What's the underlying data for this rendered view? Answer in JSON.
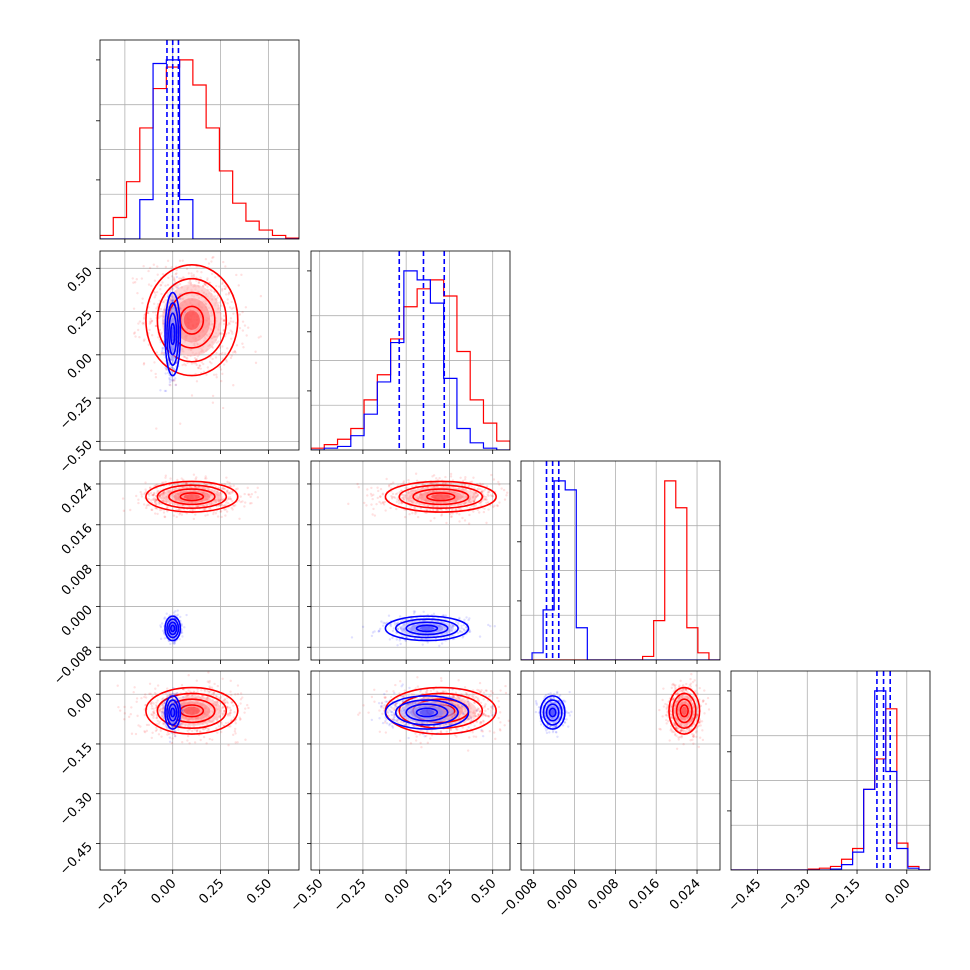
{
  "chart_data": {
    "type": "corner",
    "title": "",
    "parameters": 4,
    "grid": true,
    "colors": {
      "red": "#ff0000",
      "blue": "#0000ff"
    },
    "axes": [
      {
        "range": [
          -0.38,
          0.66
        ],
        "ticks": [
          -0.25,
          0.0,
          0.25,
          0.5
        ],
        "tick_labels": [
          "−0.25",
          "0.00",
          "0.25",
          "0.50"
        ]
      },
      {
        "range": [
          -0.55,
          0.6
        ],
        "ticks": [
          -0.5,
          -0.25,
          0.0,
          0.25,
          0.5
        ],
        "tick_labels": [
          "−0.50",
          "−0.25",
          "0.00",
          "0.25",
          "0.50"
        ]
      },
      {
        "range": [
          -0.0105,
          0.0285
        ],
        "ticks": [
          -0.008,
          0.0,
          0.008,
          0.016,
          0.024
        ],
        "tick_labels": [
          "−0.008",
          "0.000",
          "0.008",
          "0.016",
          "0.024"
        ]
      },
      {
        "range": [
          -0.53,
          0.07
        ],
        "ticks": [
          -0.45,
          -0.3,
          -0.15,
          0.0
        ],
        "tick_labels": [
          "−0.45",
          "−0.30",
          "−0.15",
          "0.00"
        ]
      }
    ],
    "series": [
      {
        "color": "#ff0000",
        "mean": [
          0.1,
          0.2,
          0.0215,
          -0.05
        ],
        "sd": [
          0.12,
          0.16,
          0.0015,
          0.035
        ],
        "quantiles": [],
        "hist": [
          {
            "edges_range": [
              -0.38,
              0.66
            ],
            "counts": [
              0.02,
              0.12,
              0.32,
              0.62,
              0.84,
              0.96,
              1.0,
              0.86,
              0.62,
              0.38,
              0.2,
              0.1,
              0.05,
              0.02,
              0.005
            ]
          },
          {
            "edges_range": [
              -0.55,
              0.6
            ],
            "counts": [
              0.01,
              0.03,
              0.06,
              0.12,
              0.28,
              0.42,
              0.62,
              0.8,
              0.9,
              0.95,
              0.86,
              0.55,
              0.28,
              0.15,
              0.05
            ]
          },
          {
            "edges_range": [
              -0.0105,
              0.0285
            ],
            "counts": [
              0,
              0,
              0,
              0,
              0,
              0,
              0,
              0,
              0,
              0,
              0,
              0.02,
              0.22,
              1.0,
              0.85,
              0.18,
              0.04,
              0.0
            ]
          },
          {
            "edges_range": [
              -0.53,
              0.07
            ],
            "counts": [
              0,
              0,
              0,
              0,
              0,
              0,
              0,
              0.005,
              0.01,
              0.02,
              0.06,
              0.12,
              0.45,
              0.62,
              0.9,
              0.15,
              0.02,
              0.0
            ]
          }
        ]
      },
      {
        "color": "#0000ff",
        "mean": [
          0.0,
          0.12,
          -0.0043,
          -0.055
        ],
        "sd": [
          0.02,
          0.12,
          0.0012,
          0.025
        ],
        "quantiles": [
          [
            -0.03,
            0.0,
            0.03
          ],
          [
            -0.04,
            0.1,
            0.22
          ],
          [
            -0.0055,
            -0.0043,
            -0.0031
          ],
          [
            -0.09,
            -0.07,
            -0.05
          ]
        ],
        "hist": [
          {
            "edges_range": [
              -0.38,
              0.66
            ],
            "counts": [
              0,
              0,
              0,
              0.22,
              0.98,
              1.0,
              0.22,
              0,
              0,
              0,
              0,
              0,
              0,
              0,
              0
            ]
          },
          {
            "edges_range": [
              -0.55,
              0.6
            ],
            "counts": [
              0.0,
              0.01,
              0.02,
              0.08,
              0.2,
              0.38,
              0.6,
              1.0,
              0.95,
              0.82,
              0.4,
              0.12,
              0.04,
              0.01,
              0.0
            ]
          },
          {
            "edges_range": [
              -0.0105,
              0.0285
            ],
            "counts": [
              0.0,
              0.04,
              0.28,
              1.0,
              0.95,
              0.18,
              0.0,
              0,
              0,
              0,
              0,
              0,
              0,
              0,
              0,
              0,
              0,
              0
            ]
          },
          {
            "edges_range": [
              -0.53,
              0.07
            ],
            "counts": [
              0,
              0,
              0,
              0,
              0,
              0,
              0,
              0,
              0,
              0.005,
              0.03,
              0.1,
              0.45,
              1.0,
              0.55,
              0.12,
              0.01,
              0.0
            ]
          }
        ]
      }
    ]
  }
}
